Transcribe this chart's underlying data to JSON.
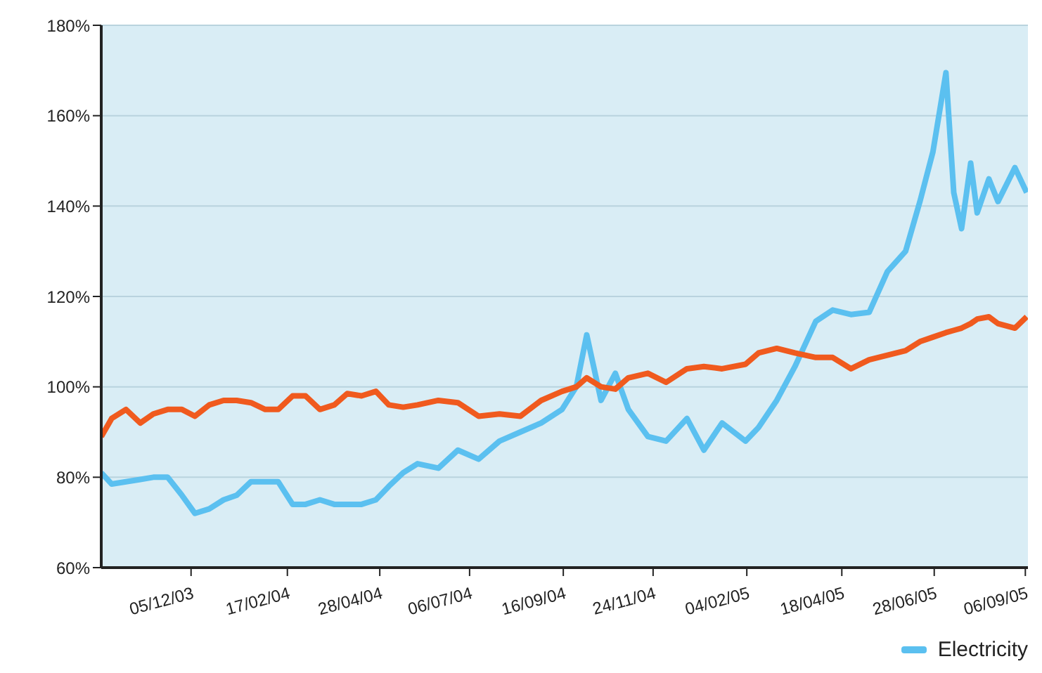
{
  "chart_data": {
    "type": "line",
    "x": [
      "2003-09-27",
      "2003-10-05",
      "2003-10-16",
      "2003-10-27",
      "2003-11-06",
      "2003-11-17",
      "2003-11-28",
      "2003-12-08",
      "2003-12-19",
      "2003-12-30",
      "2004-01-09",
      "2004-01-20",
      "2004-01-31",
      "2004-02-10",
      "2004-02-21",
      "2004-03-02",
      "2004-03-13",
      "2004-03-24",
      "2004-04-03",
      "2004-04-14",
      "2004-04-25",
      "2004-05-05",
      "2004-05-16",
      "2004-05-27",
      "2004-06-12",
      "2004-06-27",
      "2004-07-13",
      "2004-07-29",
      "2004-08-14",
      "2004-08-30",
      "2004-09-15",
      "2004-09-26",
      "2004-10-04",
      "2004-10-15",
      "2004-10-26",
      "2004-11-05",
      "2004-11-20",
      "2004-12-04",
      "2004-12-20",
      "2005-01-02",
      "2005-01-16",
      "2005-02-03",
      "2005-02-13",
      "2005-02-27",
      "2005-03-13",
      "2005-03-29",
      "2005-04-11",
      "2005-04-25",
      "2005-05-09",
      "2005-05-23",
      "2005-06-06",
      "2005-06-17",
      "2005-06-27",
      "2005-07-07",
      "2005-07-13",
      "2005-07-19",
      "2005-07-26",
      "2005-07-31",
      "2005-08-09",
      "2005-08-16",
      "2005-08-29",
      "2005-09-07"
    ],
    "series": [
      {
        "name": "Electricity",
        "color": "#5bc0f0",
        "values": [
          81,
          78.5,
          79,
          79.5,
          80,
          80,
          76,
          72,
          73,
          75,
          76,
          79,
          79,
          79,
          74,
          74,
          75,
          74,
          74,
          74,
          75,
          78,
          81,
          83,
          82,
          86,
          84,
          88,
          90,
          92,
          95,
          100,
          111.5,
          97,
          103,
          95,
          89,
          88,
          93,
          86,
          92,
          88,
          91,
          97,
          104.5,
          114.5,
          117,
          116,
          116.5,
          125.5,
          130,
          141,
          152,
          169.5,
          143,
          135,
          149.5,
          138.5,
          146,
          141,
          148.5,
          143
        ]
      },
      {
        "color": "#f05a1e",
        "values": [
          89,
          93,
          95,
          92,
          94,
          95,
          95,
          93.5,
          96,
          97,
          97,
          96.5,
          95,
          95,
          98,
          98,
          95,
          96,
          98.5,
          98,
          99,
          96,
          95.5,
          96,
          97,
          96.5,
          93.5,
          94,
          93.5,
          97,
          99,
          100,
          102,
          100,
          99.5,
          102,
          103,
          101,
          104,
          104.5,
          104,
          105,
          107.5,
          108.5,
          107.5,
          106.5,
          106.5,
          104,
          106,
          107,
          108,
          110,
          111,
          112,
          112.5,
          113,
          114,
          115,
          115.5,
          114,
          113,
          115.5
        ]
      }
    ],
    "xlim": [
      "2003-09-27",
      "2005-09-08"
    ],
    "xticks": [
      {
        "value": "2003-12-05",
        "label": "05/12/03"
      },
      {
        "value": "2004-02-17",
        "label": "17/02/04"
      },
      {
        "value": "2004-04-28",
        "label": "28/04/04"
      },
      {
        "value": "2004-07-06",
        "label": "06/07/04"
      },
      {
        "value": "2004-09-16",
        "label": "16/09/04"
      },
      {
        "value": "2004-11-24",
        "label": "24/11/04"
      },
      {
        "value": "2005-02-04",
        "label": "04/02/05"
      },
      {
        "value": "2005-04-18",
        "label": "18/04/05"
      },
      {
        "value": "2005-06-28",
        "label": "28/06/05"
      },
      {
        "value": "2005-09-06",
        "label": "06/09/05"
      }
    ],
    "ylim": [
      60,
      180
    ],
    "yticks": [
      {
        "value": 60,
        "label": "60%"
      },
      {
        "value": 80,
        "label": "80%"
      },
      {
        "value": 100,
        "label": "100%"
      },
      {
        "value": 120,
        "label": "120%"
      },
      {
        "value": 140,
        "label": "140%"
      },
      {
        "value": 160,
        "label": "160%"
      },
      {
        "value": 180,
        "label": "180%"
      }
    ],
    "grid": "y",
    "legend": "bottom right",
    "marker": "none",
    "line_style": "solid"
  }
}
